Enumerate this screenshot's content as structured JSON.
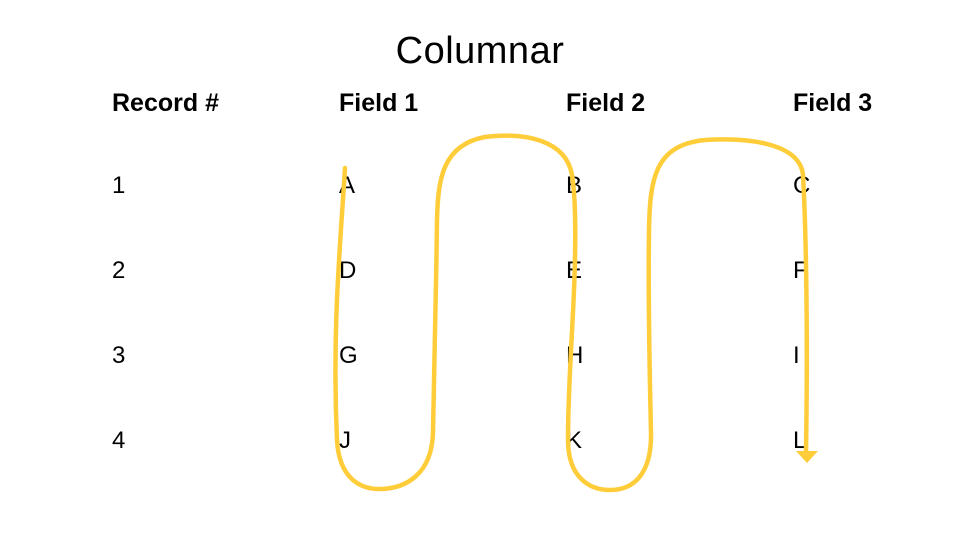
{
  "slide": {
    "title": "Columnar",
    "headers": [
      "Record #",
      "Field 1",
      "Field 2",
      "Field 3"
    ],
    "rows": [
      [
        "1",
        "A",
        "B",
        "C"
      ],
      [
        "2",
        "D",
        "E",
        "F"
      ],
      [
        "3",
        "G",
        "H",
        "I"
      ],
      [
        "4",
        "J",
        "K",
        "L"
      ]
    ]
  },
  "colors": {
    "flow_arrow": "#FFCD3A",
    "text": "#000000",
    "background": "#FFFFFF"
  }
}
